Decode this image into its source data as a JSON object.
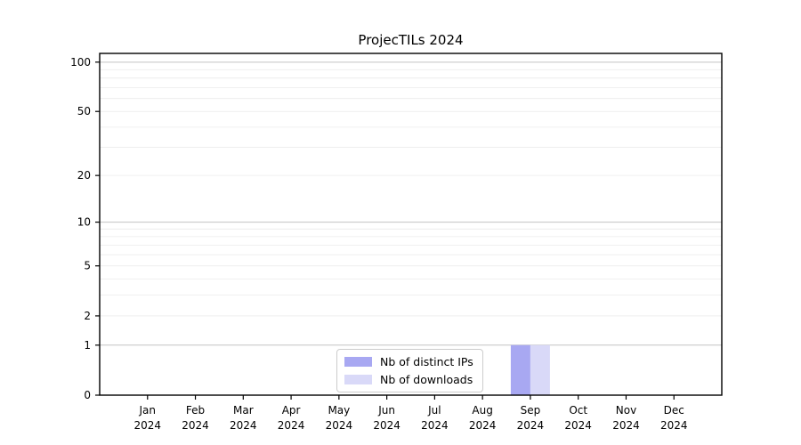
{
  "title": "ProjecTILs 2024",
  "chart_data": {
    "type": "bar",
    "title": "ProjecTILs 2024",
    "categories": [
      "Jan 2024",
      "Feb 2024",
      "Mar 2024",
      "Apr 2024",
      "May 2024",
      "Jun 2024",
      "Jul 2024",
      "Aug 2024",
      "Sep 2024",
      "Oct 2024",
      "Nov 2024",
      "Dec 2024"
    ],
    "series": [
      {
        "name": "Nb of distinct IPs",
        "color": "#a8a8f2",
        "values": [
          0,
          0,
          0,
          0,
          0,
          0,
          0,
          0,
          1,
          0,
          0,
          0
        ]
      },
      {
        "name": "Nb of downloads",
        "color": "#d9d9f8",
        "values": [
          0,
          0,
          0,
          0,
          0,
          0,
          0,
          0,
          1,
          0,
          0,
          0
        ]
      }
    ],
    "xlabel": "",
    "ylabel": "",
    "yscale": "log1p",
    "ylim": [
      0,
      113
    ],
    "ytick_values": [
      100,
      50,
      20,
      10,
      5,
      2,
      1,
      0
    ],
    "ytick_labels": [
      "100",
      "50",
      "20",
      "10",
      "5",
      "2",
      "1",
      "0"
    ],
    "major_grid_values": [
      1,
      10,
      100
    ],
    "minor_grid_values": [
      2,
      3,
      4,
      5,
      6,
      7,
      8,
      9,
      20,
      30,
      40,
      50,
      60,
      70,
      80,
      90
    ],
    "grid": true,
    "legend_position": "inside bottom-center"
  },
  "style_colors": {
    "major_grid": "#c3c3c3",
    "minor_grid": "#ebebeb",
    "spine": "#000000",
    "tick": "#000000",
    "background": "#ffffff"
  }
}
